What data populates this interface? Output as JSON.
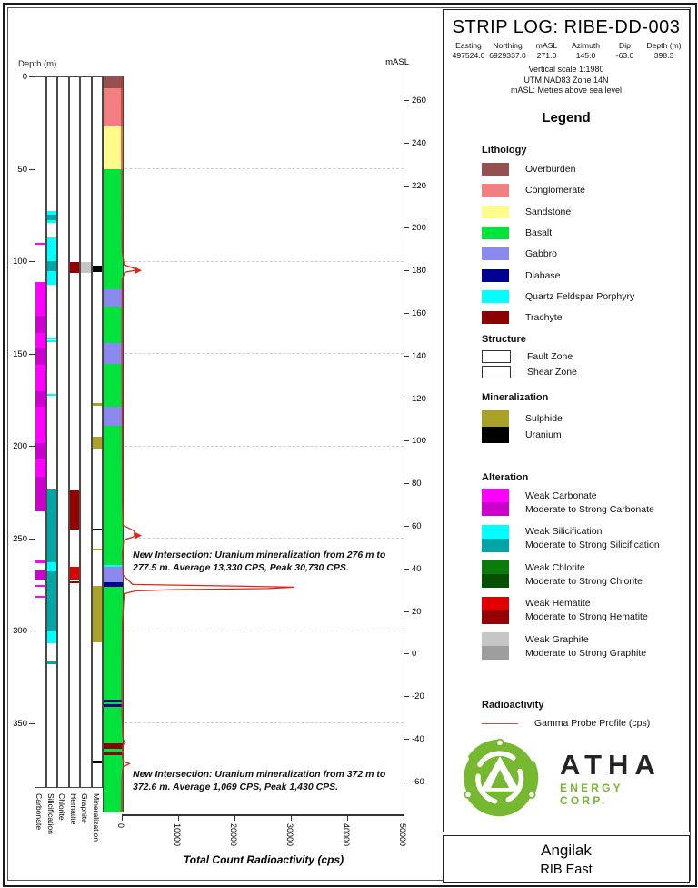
{
  "header": {
    "title": "STRIP LOG: RIBE-DD-003",
    "fields": [
      {
        "label": "Easting",
        "value": "497524.0"
      },
      {
        "label": "Northing",
        "value": "6929337.0"
      },
      {
        "label": "mASL",
        "value": "271.0"
      },
      {
        "label": "Azimuth",
        "value": "145.0"
      },
      {
        "label": "Dip",
        "value": "-63.0"
      },
      {
        "label": "Depth (m)",
        "value": "398.3"
      }
    ],
    "notes": [
      "Vertical scale 1:1980",
      "UTM NAD83 Zone 14N",
      "mASL: Metres above sea level"
    ]
  },
  "legend": {
    "title": "Legend",
    "lithology": {
      "title": "Lithology",
      "rows": [
        {
          "label": "Overburden",
          "color": "#955050"
        },
        {
          "label": "Conglomerate",
          "color": "#F28080"
        },
        {
          "label": "Sandstone",
          "color": "#FFFC8C"
        },
        {
          "label": "Basalt",
          "color": "#00E23C"
        },
        {
          "label": "Gabbro",
          "color": "#8A8AEE"
        },
        {
          "label": "Diabase",
          "color": "#000090"
        },
        {
          "label": "Quartz Feldspar Porphyry",
          "color": "#00FFFF"
        },
        {
          "label": "Trachyte",
          "color": "#8B0000"
        }
      ]
    },
    "structure": {
      "title": "Structure",
      "rows": [
        {
          "label": "Fault Zone",
          "pattern": "fault"
        },
        {
          "label": "Shear Zone",
          "pattern": "shear"
        }
      ]
    },
    "mineralization": {
      "title": "Mineralization",
      "rows": [
        {
          "label": "Sulphide",
          "color": "#A9A227"
        },
        {
          "label": "Uranium",
          "color": "#000000"
        }
      ]
    },
    "alteration": {
      "title": "Alteration",
      "pairs": [
        {
          "weak_label": "Weak Carbonate",
          "strong_label": "Moderate to Strong Carbonate",
          "weak_color": "#FF00FF",
          "strong_color": "#CC00CC"
        },
        {
          "weak_label": "Weak Silicification",
          "strong_label": "Moderate to Strong Silicification",
          "weak_color": "#00FFFF",
          "strong_color": "#00A6A6"
        },
        {
          "weak_label": "Weak Chlorite",
          "strong_label": "Moderate to Strong Chlorite",
          "weak_color": "#0B7B0B",
          "strong_color": "#055005"
        },
        {
          "weak_label": "Weak Hematite",
          "strong_label": "Moderate to Strong Hematite",
          "weak_color": "#E00000",
          "strong_color": "#960000"
        },
        {
          "weak_label": "Weak Graphite",
          "strong_label": "Moderate to Strong Graphite",
          "weak_color": "#C6C6C6",
          "strong_color": "#9E9E9E"
        }
      ]
    },
    "radioactivity": {
      "title": "Radioactivity",
      "label": "Gamma Probe Profile (cps)",
      "color": "#C0504D"
    }
  },
  "logo": {
    "brand": "ATHA",
    "sub": "ENERGY CORP.",
    "green": "#76B82F"
  },
  "footer": {
    "line1": "Angilak",
    "line2": "RIB East"
  },
  "chart_data": {
    "type": "strip-log",
    "depth_axis": {
      "label": "Depth (m)",
      "ticks": [
        0,
        50,
        100,
        150,
        200,
        250,
        300,
        350
      ],
      "max": 398.3
    },
    "masl_axis": {
      "label": "mASL",
      "collar": 271.0,
      "ticks": [
        260,
        240,
        220,
        200,
        180,
        160,
        140,
        120,
        100,
        80,
        60,
        40,
        20,
        0,
        -20,
        -40,
        -60
      ]
    },
    "tracks": [
      {
        "name": "Carbonate",
        "colors": {
          "weak": "#FF00FF",
          "strong": "#CC00CC"
        },
        "intervals": [
          {
            "from": 90.3,
            "to": 91.1,
            "cls": "weak"
          },
          {
            "from": 111.5,
            "to": 129.5,
            "cls": "weak"
          },
          {
            "from": 129.5,
            "to": 139,
            "cls": "strong"
          },
          {
            "from": 139,
            "to": 147.5,
            "cls": "weak"
          },
          {
            "from": 147.5,
            "to": 156,
            "cls": "strong"
          },
          {
            "from": 156,
            "to": 170.5,
            "cls": "weak"
          },
          {
            "from": 170.5,
            "to": 179,
            "cls": "strong"
          },
          {
            "from": 179,
            "to": 198.5,
            "cls": "weak"
          },
          {
            "from": 198.5,
            "to": 207.5,
            "cls": "strong"
          },
          {
            "from": 207.5,
            "to": 216.5,
            "cls": "weak"
          },
          {
            "from": 216.5,
            "to": 235.5,
            "cls": "strong"
          },
          {
            "from": 262,
            "to": 263.5,
            "cls": "weak"
          },
          {
            "from": 267.5,
            "to": 272.5,
            "cls": "strong"
          },
          {
            "from": 275.5,
            "to": 276.4,
            "cls": "weak"
          },
          {
            "from": 281.2,
            "to": 282,
            "cls": "weak"
          }
        ]
      },
      {
        "name": "Silicification",
        "colors": {
          "weak": "#00FFFF",
          "strong": "#00A6A6"
        },
        "intervals": [
          {
            "from": 72.8,
            "to": 75,
            "cls": "weak"
          },
          {
            "from": 75,
            "to": 77.8,
            "cls": "strong"
          },
          {
            "from": 77.8,
            "to": 79.5,
            "cls": "weak"
          },
          {
            "from": 87,
            "to": 99.8,
            "cls": "weak"
          },
          {
            "from": 99.8,
            "to": 105.5,
            "cls": "strong"
          },
          {
            "from": 105.5,
            "to": 112.8,
            "cls": "weak"
          },
          {
            "from": 141.3,
            "to": 142.1,
            "cls": "weak"
          },
          {
            "from": 143,
            "to": 143.8,
            "cls": "weak"
          },
          {
            "from": 172,
            "to": 172.8,
            "cls": "weak"
          },
          {
            "from": 223.8,
            "to": 263,
            "cls": "strong"
          },
          {
            "from": 263,
            "to": 268,
            "cls": "weak"
          },
          {
            "from": 268,
            "to": 300,
            "cls": "strong"
          },
          {
            "from": 300,
            "to": 307,
            "cls": "weak"
          },
          {
            "from": 316.5,
            "to": 318.2,
            "cls": "strong"
          }
        ]
      },
      {
        "name": "Chlorite",
        "colors": {
          "weak": "#0B7B0B",
          "strong": "#055005"
        },
        "intervals": []
      },
      {
        "name": "Hematite",
        "colors": {
          "weak": "#E00000",
          "strong": "#960000"
        },
        "intervals": [
          {
            "from": 100.3,
            "to": 106.5,
            "cls": "strong"
          },
          {
            "from": 224,
            "to": 245.5,
            "cls": "strong"
          },
          {
            "from": 265.5,
            "to": 272.5,
            "cls": "weak"
          },
          {
            "from": 273.2,
            "to": 274.2,
            "cls": "strong"
          }
        ]
      },
      {
        "name": "Graphite",
        "colors": {
          "weak": "#C6C6C6",
          "strong": "#9E9E9E"
        },
        "intervals": [
          {
            "from": 100.3,
            "to": 106.5,
            "cls": "weak"
          }
        ]
      },
      {
        "name": "Mineralization",
        "colors": {
          "sulphide": "#A9A227",
          "uranium": "#000000"
        },
        "intervals": [
          {
            "from": 102.5,
            "to": 106,
            "cls": "uranium"
          },
          {
            "from": 177,
            "to": 178.2,
            "cls": "sulphide"
          },
          {
            "from": 195,
            "to": 201.6,
            "cls": "sulphide"
          },
          {
            "from": 245,
            "to": 246,
            "cls": "uranium"
          },
          {
            "from": 255.5,
            "to": 256.6,
            "cls": "sulphide"
          },
          {
            "from": 276,
            "to": 306.5,
            "cls": "sulphide"
          },
          {
            "from": 370.5,
            "to": 371.8,
            "cls": "uranium"
          }
        ]
      }
    ],
    "lithology": {
      "unit_order": [
        "overburden",
        "conglomerate",
        "sandstone",
        "basalt",
        "gabbro",
        "diabase",
        "qfp",
        "trachyte"
      ],
      "units": {
        "overburden": {
          "label": "Overburden",
          "color": "#955050"
        },
        "conglomerate": {
          "label": "Conglomerate",
          "color": "#F28080"
        },
        "sandstone": {
          "label": "Sandstone",
          "color": "#FFFC8C"
        },
        "basalt": {
          "label": "Basalt",
          "color": "#00E23C"
        },
        "gabbro": {
          "label": "Gabbro",
          "color": "#8A8AEE"
        },
        "diabase": {
          "label": "Diabase",
          "color": "#000090"
        },
        "qfp": {
          "label": "Quartz Feldspar Porphyry",
          "color": "#00FFFF"
        },
        "trachyte": {
          "label": "Trachyte",
          "color": "#8B0000"
        }
      },
      "intervals": [
        {
          "from": 0,
          "to": 6.5,
          "unit": "overburden"
        },
        {
          "from": 6.5,
          "to": 27,
          "unit": "conglomerate"
        },
        {
          "from": 27,
          "to": 50,
          "unit": "sandstone"
        },
        {
          "from": 50,
          "to": 68,
          "unit": "basalt"
        },
        {
          "from": 68,
          "to": 77.5,
          "unit": "basalt",
          "structure": "shear"
        },
        {
          "from": 77.5,
          "to": 87,
          "unit": "basalt"
        },
        {
          "from": 87,
          "to": 93,
          "unit": "basalt",
          "structure": "shear"
        },
        {
          "from": 93,
          "to": 97.5,
          "unit": "basalt"
        },
        {
          "from": 97.5,
          "to": 101,
          "unit": "basalt",
          "structure": "shear"
        },
        {
          "from": 101,
          "to": 106.5,
          "unit": "basalt",
          "structure": "fault"
        },
        {
          "from": 106.5,
          "to": 115.4,
          "unit": "basalt"
        },
        {
          "from": 115.4,
          "to": 124.5,
          "unit": "gabbro"
        },
        {
          "from": 124.5,
          "to": 133.5,
          "unit": "basalt"
        },
        {
          "from": 133.5,
          "to": 140,
          "unit": "basalt",
          "structure": "fault"
        },
        {
          "from": 140,
          "to": 144.2,
          "unit": "basalt"
        },
        {
          "from": 144.2,
          "to": 155.7,
          "unit": "gabbro"
        },
        {
          "from": 155.7,
          "to": 161.4,
          "unit": "basalt",
          "structure": "shear"
        },
        {
          "from": 161.4,
          "to": 165.5,
          "unit": "basalt"
        },
        {
          "from": 165.5,
          "to": 170.4,
          "unit": "basalt",
          "structure": "shear"
        },
        {
          "from": 170.4,
          "to": 171.3,
          "unit": "basalt"
        },
        {
          "from": 171.3,
          "to": 177.8,
          "unit": "basalt",
          "structure": "fault"
        },
        {
          "from": 177.8,
          "to": 178.7,
          "unit": "basalt"
        },
        {
          "from": 178.7,
          "to": 189.3,
          "unit": "gabbro"
        },
        {
          "from": 189.3,
          "to": 201.5,
          "unit": "basalt"
        },
        {
          "from": 201.5,
          "to": 208.3,
          "unit": "basalt",
          "structure": "shear"
        },
        {
          "from": 208.3,
          "to": 211.4,
          "unit": "basalt"
        },
        {
          "from": 211.4,
          "to": 218.3,
          "unit": "basalt",
          "structure": "shear"
        },
        {
          "from": 218.3,
          "to": 223.6,
          "unit": "basalt"
        },
        {
          "from": 223.6,
          "to": 228,
          "unit": "basalt",
          "structure": "shear"
        },
        {
          "from": 228,
          "to": 231,
          "unit": "basalt"
        },
        {
          "from": 231,
          "to": 238,
          "unit": "basalt",
          "structure": "fault"
        },
        {
          "from": 238,
          "to": 244,
          "unit": "basalt",
          "structure": "shear"
        },
        {
          "from": 244,
          "to": 249,
          "unit": "basalt",
          "structure": "fault"
        },
        {
          "from": 249,
          "to": 257.5,
          "unit": "basalt"
        },
        {
          "from": 257.5,
          "to": 264.4,
          "unit": "basalt",
          "structure": "shear"
        },
        {
          "from": 264.4,
          "to": 265.4,
          "unit": "qfp"
        },
        {
          "from": 265.4,
          "to": 273.9,
          "unit": "gabbro"
        },
        {
          "from": 273.9,
          "to": 276.5,
          "unit": "diabase"
        },
        {
          "from": 276.5,
          "to": 294,
          "unit": "basalt",
          "structure": "shear"
        },
        {
          "from": 294,
          "to": 306.7,
          "unit": "basalt",
          "structure": "shear"
        },
        {
          "from": 306.7,
          "to": 337.5,
          "unit": "basalt"
        },
        {
          "from": 337.5,
          "to": 339,
          "unit": "diabase"
        },
        {
          "from": 339,
          "to": 340,
          "unit": "basalt"
        },
        {
          "from": 340,
          "to": 341.5,
          "unit": "diabase"
        },
        {
          "from": 341.5,
          "to": 361,
          "unit": "basalt"
        },
        {
          "from": 361,
          "to": 364,
          "unit": "trachyte"
        },
        {
          "from": 364,
          "to": 366,
          "unit": "basalt"
        },
        {
          "from": 366,
          "to": 367.5,
          "unit": "trachyte"
        },
        {
          "from": 367.5,
          "to": 398.3,
          "unit": "basalt"
        }
      ]
    },
    "gamma": {
      "label": "Total Count Radioactivity (cps)",
      "ticks": [
        0,
        10000,
        20000,
        30000,
        40000,
        50000
      ],
      "max": 50000,
      "color": "#D3291D",
      "arrow_depths": [
        105,
        248.5
      ],
      "points": [
        [
          0,
          60
        ],
        [
          30,
          80
        ],
        [
          60,
          90
        ],
        [
          95,
          150
        ],
        [
          102,
          500
        ],
        [
          104,
          2400
        ],
        [
          105,
          2400
        ],
        [
          106,
          600
        ],
        [
          110,
          150
        ],
        [
          150,
          120
        ],
        [
          190,
          140
        ],
        [
          230,
          180
        ],
        [
          243,
          300
        ],
        [
          246,
          2300
        ],
        [
          249,
          2300
        ],
        [
          251,
          400
        ],
        [
          258,
          200
        ],
        [
          270,
          300
        ],
        [
          275,
          2000
        ],
        [
          276,
          22000
        ],
        [
          276.5,
          30730
        ],
        [
          277.2,
          26000
        ],
        [
          277.8,
          9000
        ],
        [
          278.5,
          2500
        ],
        [
          280,
          500
        ],
        [
          295,
          200
        ],
        [
          320,
          120
        ],
        [
          345,
          110
        ],
        [
          359,
          300
        ],
        [
          360.5,
          700
        ],
        [
          362,
          250
        ],
        [
          369,
          200
        ],
        [
          371,
          400
        ],
        [
          372,
          1430
        ],
        [
          372.6,
          1100
        ],
        [
          373.5,
          300
        ],
        [
          380,
          120
        ],
        [
          398,
          60
        ]
      ]
    },
    "annotations": [
      {
        "depth": 276,
        "offset": -40,
        "text": "New Intersection: Uranium mineralization from 276 m to 277.5 m. Average 13,330 CPS, Peak 30,730 CPS."
      },
      {
        "depth": 372,
        "offset": 6,
        "text": "New Intersection: Uranium mineralization from 372 m to 372.6 m. Average 1,069 CPS, Peak 1,430 CPS."
      }
    ]
  }
}
